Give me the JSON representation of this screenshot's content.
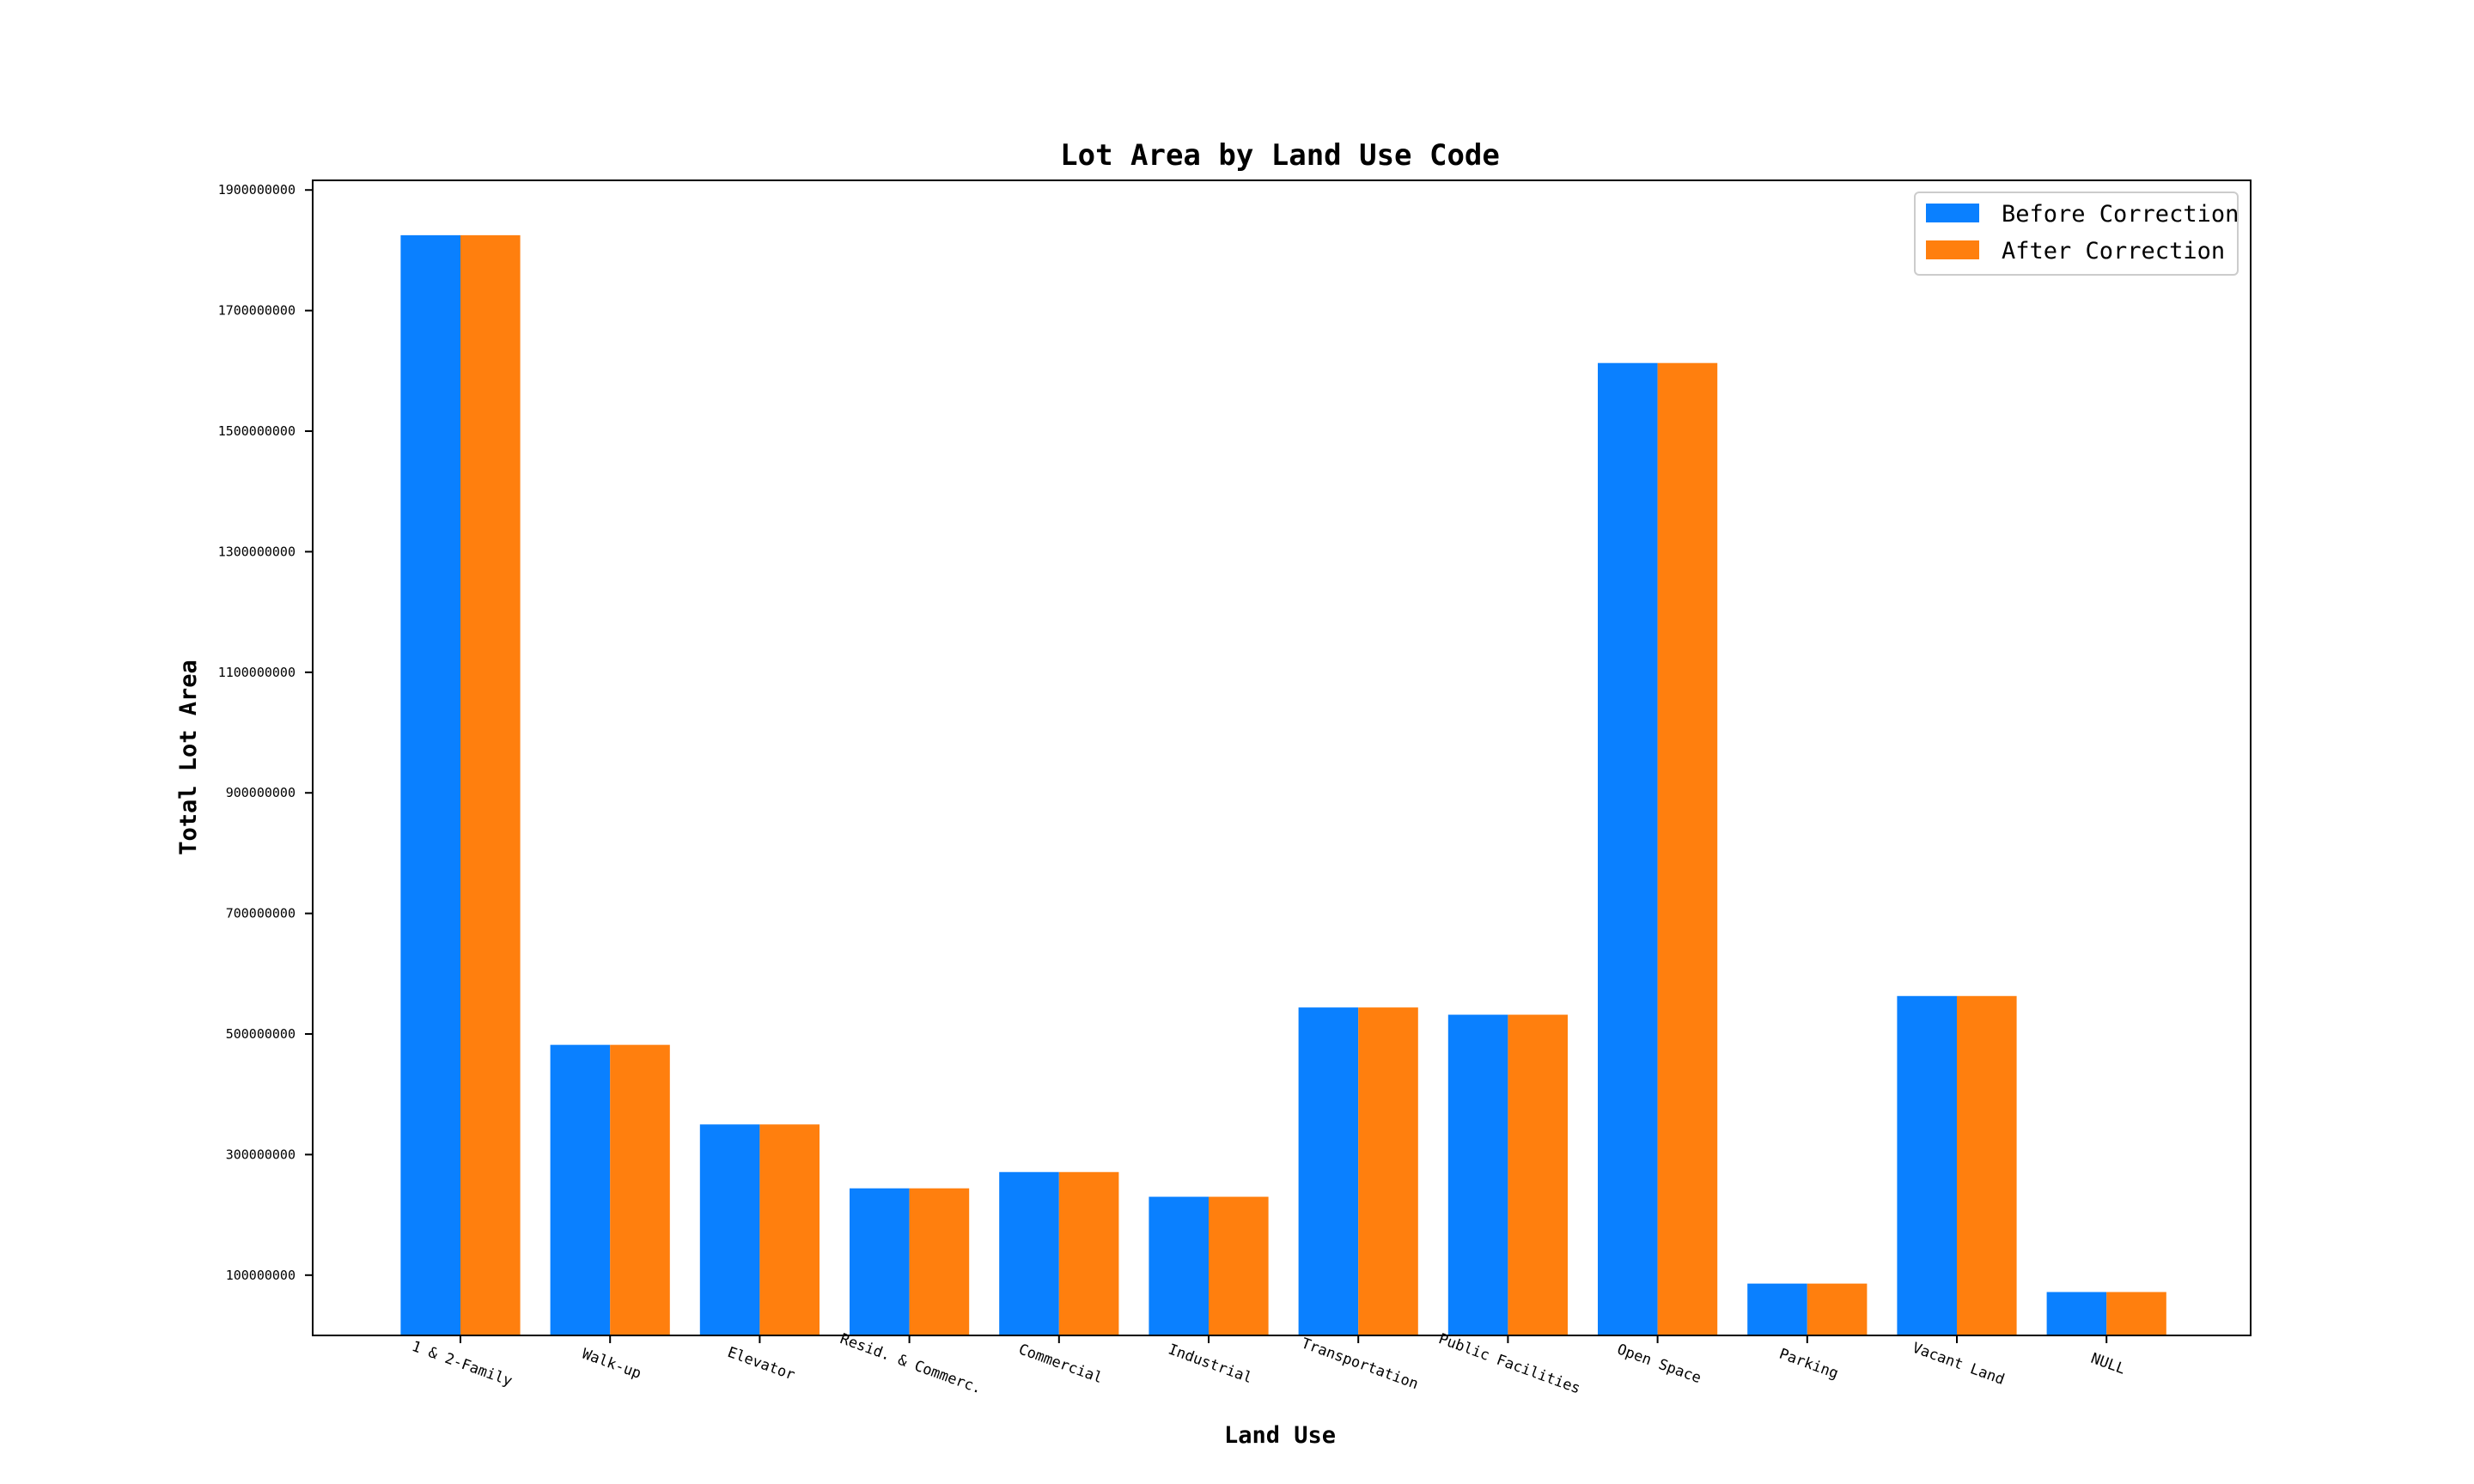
{
  "chart_data": {
    "type": "bar",
    "title": "Lot Area by Land Use Code",
    "xlabel": "Land Use",
    "ylabel": "Total Lot Area",
    "categories": [
      "1 & 2-Family",
      "Walk-up",
      "Elevator",
      "Resid. & Commerc.",
      "Commercial",
      "Industrial",
      "Transportation",
      "Public Facilities",
      "Open Space",
      "Parking",
      "Vacant Land",
      "NULL"
    ],
    "series": [
      {
        "name": "Before Correction",
        "color": "#0a80ff",
        "values": [
          1825000000,
          482000000,
          350000000,
          244000000,
          271000000,
          230000000,
          544000000,
          532000000,
          1613000000,
          86000000,
          563000000,
          72000000
        ]
      },
      {
        "name": "After Correction",
        "color": "#ff7f0e",
        "values": [
          1825000000,
          482000000,
          350000000,
          244000000,
          271000000,
          230000000,
          544000000,
          532000000,
          1613000000,
          86000000,
          563000000,
          72000000
        ]
      }
    ],
    "yticks": [
      100000000,
      300000000,
      500000000,
      700000000,
      900000000,
      1100000000,
      1300000000,
      1500000000,
      1700000000,
      1900000000
    ],
    "ytick_labels": [
      "100000000",
      "300000000",
      "500000000",
      "700000000",
      "900000000",
      "1100000000",
      "1300000000",
      "1500000000",
      "1700000000",
      "1900000000"
    ],
    "ylim": [
      0,
      1916000000
    ],
    "grid": false,
    "legend_position": "top-right"
  }
}
